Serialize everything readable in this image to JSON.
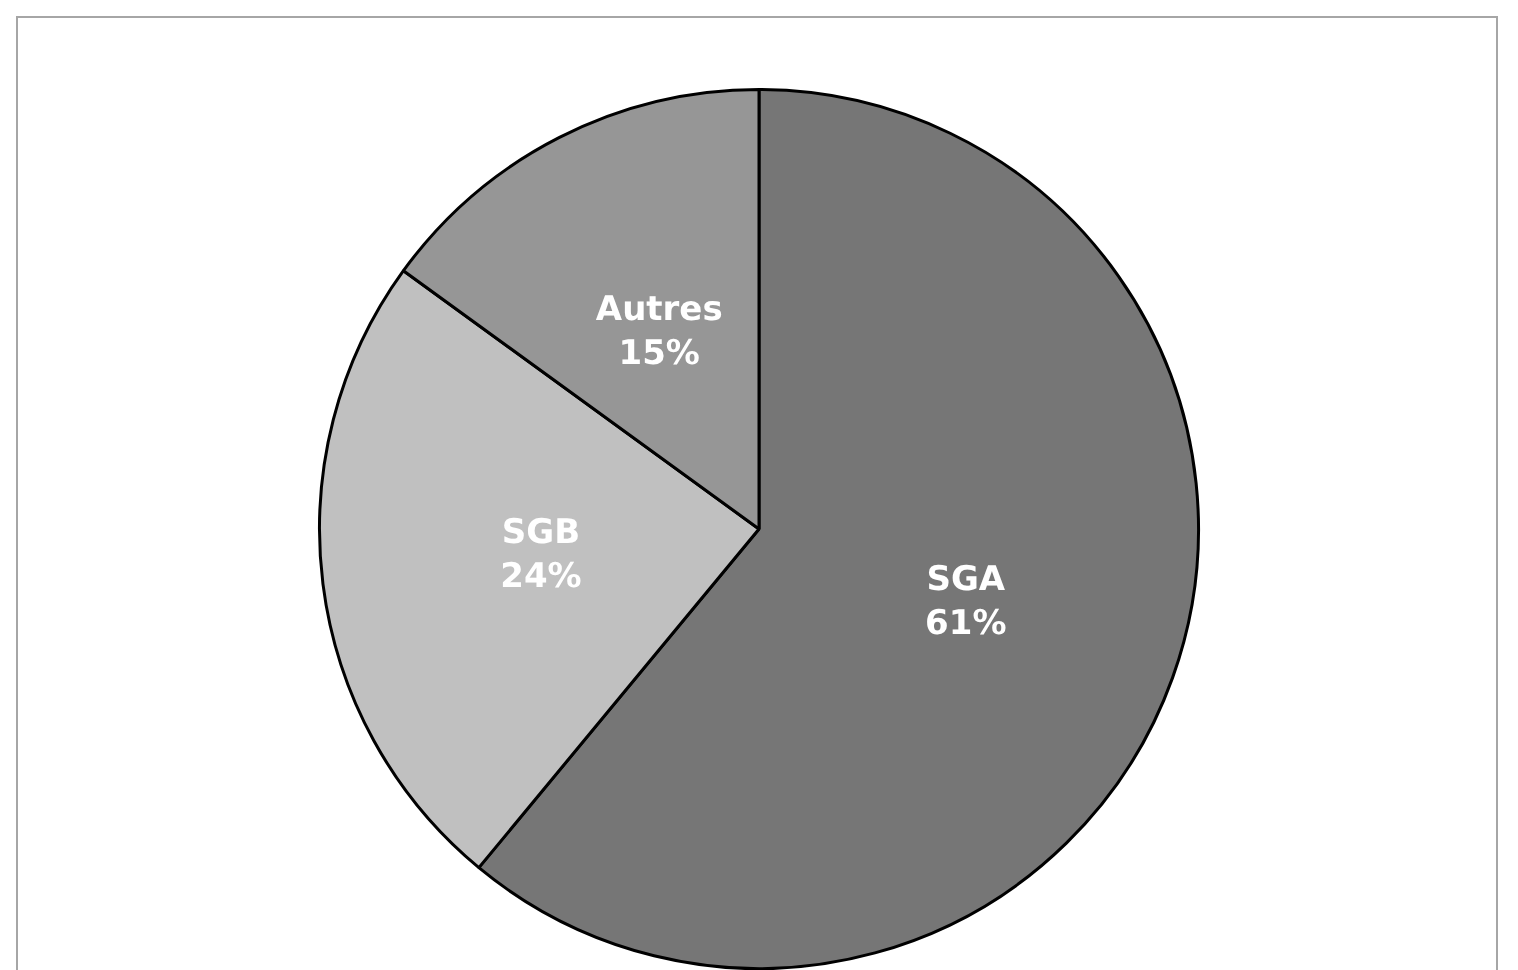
{
  "chart_data": {
    "type": "pie",
    "categories": [
      "SGA",
      "SGB",
      "Autres"
    ],
    "values": [
      61,
      24,
      15
    ],
    "value_labels": [
      "61%",
      "24%",
      "15%"
    ],
    "colors": [
      "#767676",
      "#c0c0c0",
      "#969696"
    ],
    "legend": false
  }
}
